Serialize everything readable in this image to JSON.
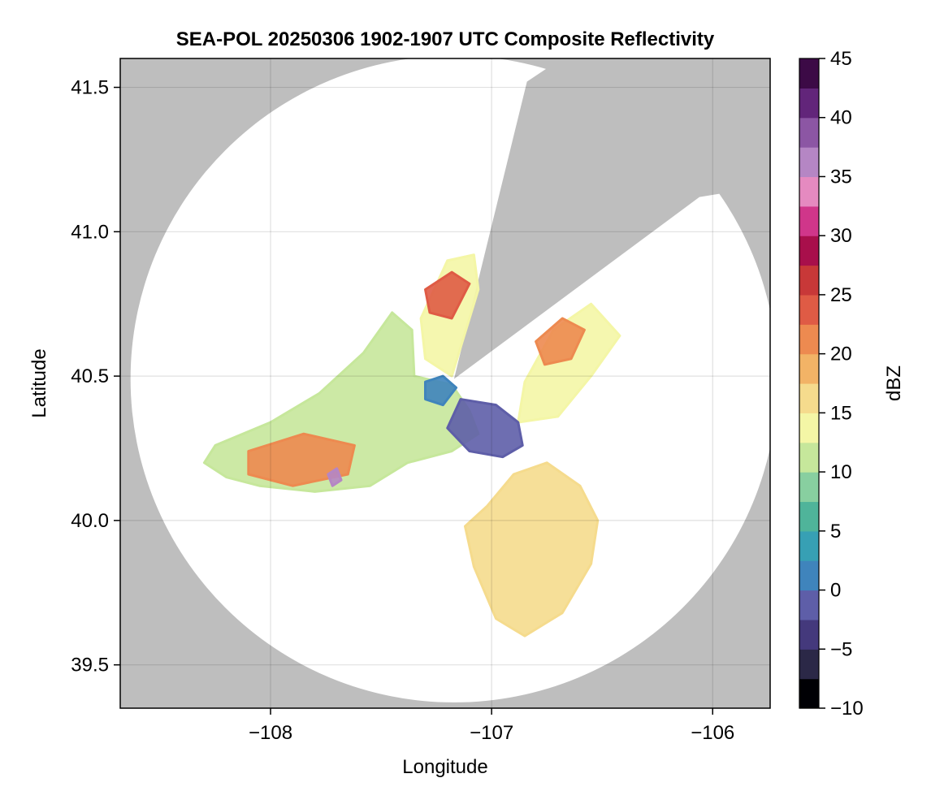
{
  "chart_data": {
    "type": "heatmap",
    "title": "SEA-POL 20250306 1902-1907 UTC Composite Reflectivity",
    "xlabel": "Longitude",
    "ylabel": "Latitude",
    "xlim": [
      -108.68,
      -105.74
    ],
    "ylim": [
      39.35,
      41.6
    ],
    "xticks": [
      -108,
      -107,
      -106
    ],
    "xtick_labels": [
      "−108",
      "−107",
      "−106"
    ],
    "yticks": [
      39.5,
      40.0,
      40.5,
      41.0,
      41.5
    ],
    "ytick_labels": [
      "39.5",
      "40.0",
      "40.5",
      "41.0",
      "41.5"
    ],
    "grid": true,
    "no_data_color": "#bebebe",
    "radar": {
      "center_lon": -107.17,
      "center_lat": 40.49,
      "range_lat_deg": 1.12,
      "blocked_sector": {
        "edge1": [
          [
            -107.17,
            40.49
          ],
          [
            -106.84,
            41.52
          ]
        ],
        "edge2": [
          [
            -107.17,
            40.49
          ],
          [
            -106.06,
            41.12
          ]
        ]
      }
    },
    "colorbar": {
      "label": "dBZ",
      "min": -10,
      "max": 45,
      "ticks": [
        -10,
        -5,
        0,
        5,
        10,
        15,
        20,
        25,
        30,
        35,
        40,
        45
      ],
      "tick_labels": [
        "−10",
        "−5",
        "0",
        "5",
        "10",
        "15",
        "20",
        "25",
        "30",
        "35",
        "40",
        "45"
      ],
      "colors": [
        "#000004",
        "#2b2847",
        "#44397c",
        "#5e5ea8",
        "#3f84bc",
        "#37a0b4",
        "#4fb49a",
        "#88cfa0",
        "#c6e79b",
        "#f4f6a6",
        "#f5db8d",
        "#f2b366",
        "#ed8a50",
        "#df5b45",
        "#c83838",
        "#a80f4b",
        "#d0368a",
        "#e58ac0",
        "#b586c4",
        "#8c56a4",
        "#62257a",
        "#3c0a46"
      ]
    },
    "echo_regions": [
      {
        "shape": [
          [
            -108.25,
            40.26
          ],
          [
            -108.0,
            40.34
          ],
          [
            -107.78,
            40.44
          ],
          [
            -107.58,
            40.58
          ],
          [
            -107.45,
            40.72
          ],
          [
            -107.36,
            40.66
          ],
          [
            -107.35,
            40.5
          ],
          [
            -107.18,
            40.47
          ],
          [
            -107.1,
            40.38
          ],
          [
            -107.06,
            40.3
          ],
          [
            -107.18,
            40.24
          ],
          [
            -107.38,
            40.2
          ],
          [
            -107.55,
            40.12
          ],
          [
            -107.8,
            40.1
          ],
          [
            -108.05,
            40.12
          ],
          [
            -108.2,
            40.15
          ],
          [
            -108.3,
            40.2
          ]
        ],
        "dbz": 12
      },
      {
        "shape": [
          [
            -107.32,
            40.7
          ],
          [
            -107.2,
            40.9
          ],
          [
            -107.08,
            40.92
          ],
          [
            -107.06,
            40.8
          ],
          [
            -107.18,
            40.5
          ],
          [
            -107.3,
            40.56
          ]
        ],
        "dbz": 13
      },
      {
        "shape": [
          [
            -106.85,
            40.48
          ],
          [
            -106.72,
            40.66
          ],
          [
            -106.55,
            40.75
          ],
          [
            -106.42,
            40.64
          ],
          [
            -106.55,
            40.5
          ],
          [
            -106.7,
            40.36
          ],
          [
            -106.88,
            40.34
          ]
        ],
        "dbz": 14
      },
      {
        "shape": [
          [
            -107.02,
            40.05
          ],
          [
            -106.9,
            40.16
          ],
          [
            -106.75,
            40.2
          ],
          [
            -106.6,
            40.12
          ],
          [
            -106.52,
            40.0
          ],
          [
            -106.55,
            39.85
          ],
          [
            -106.68,
            39.68
          ],
          [
            -106.85,
            39.6
          ],
          [
            -106.98,
            39.66
          ],
          [
            -107.08,
            39.84
          ],
          [
            -107.12,
            39.98
          ]
        ],
        "dbz": 16
      },
      {
        "shape": [
          [
            -108.1,
            40.24
          ],
          [
            -107.85,
            40.3
          ],
          [
            -107.62,
            40.26
          ],
          [
            -107.65,
            40.16
          ],
          [
            -107.9,
            40.12
          ],
          [
            -108.1,
            40.16
          ]
        ],
        "dbz": 21
      },
      {
        "shape": [
          [
            -107.3,
            40.8
          ],
          [
            -107.18,
            40.86
          ],
          [
            -107.1,
            40.82
          ],
          [
            -107.18,
            40.7
          ],
          [
            -107.28,
            40.72
          ]
        ],
        "dbz": 23
      },
      {
        "shape": [
          [
            -106.8,
            40.62
          ],
          [
            -106.68,
            40.7
          ],
          [
            -106.58,
            40.66
          ],
          [
            -106.64,
            40.56
          ],
          [
            -106.76,
            40.54
          ]
        ],
        "dbz": 21
      },
      {
        "shape": [
          [
            -107.14,
            40.42
          ],
          [
            -106.98,
            40.4
          ],
          [
            -106.88,
            40.34
          ],
          [
            -106.86,
            40.26
          ],
          [
            -106.95,
            40.22
          ],
          [
            -107.1,
            40.24
          ],
          [
            -107.2,
            40.32
          ]
        ],
        "dbz": -1
      },
      {
        "shape": [
          [
            -107.3,
            40.48
          ],
          [
            -107.22,
            40.5
          ],
          [
            -107.16,
            40.46
          ],
          [
            -107.22,
            40.4
          ],
          [
            -107.3,
            40.42
          ]
        ],
        "dbz": 1
      },
      {
        "shape": [
          [
            -107.74,
            40.16
          ],
          [
            -107.7,
            40.18
          ],
          [
            -107.68,
            40.14
          ],
          [
            -107.72,
            40.12
          ]
        ],
        "dbz": 36
      }
    ]
  }
}
